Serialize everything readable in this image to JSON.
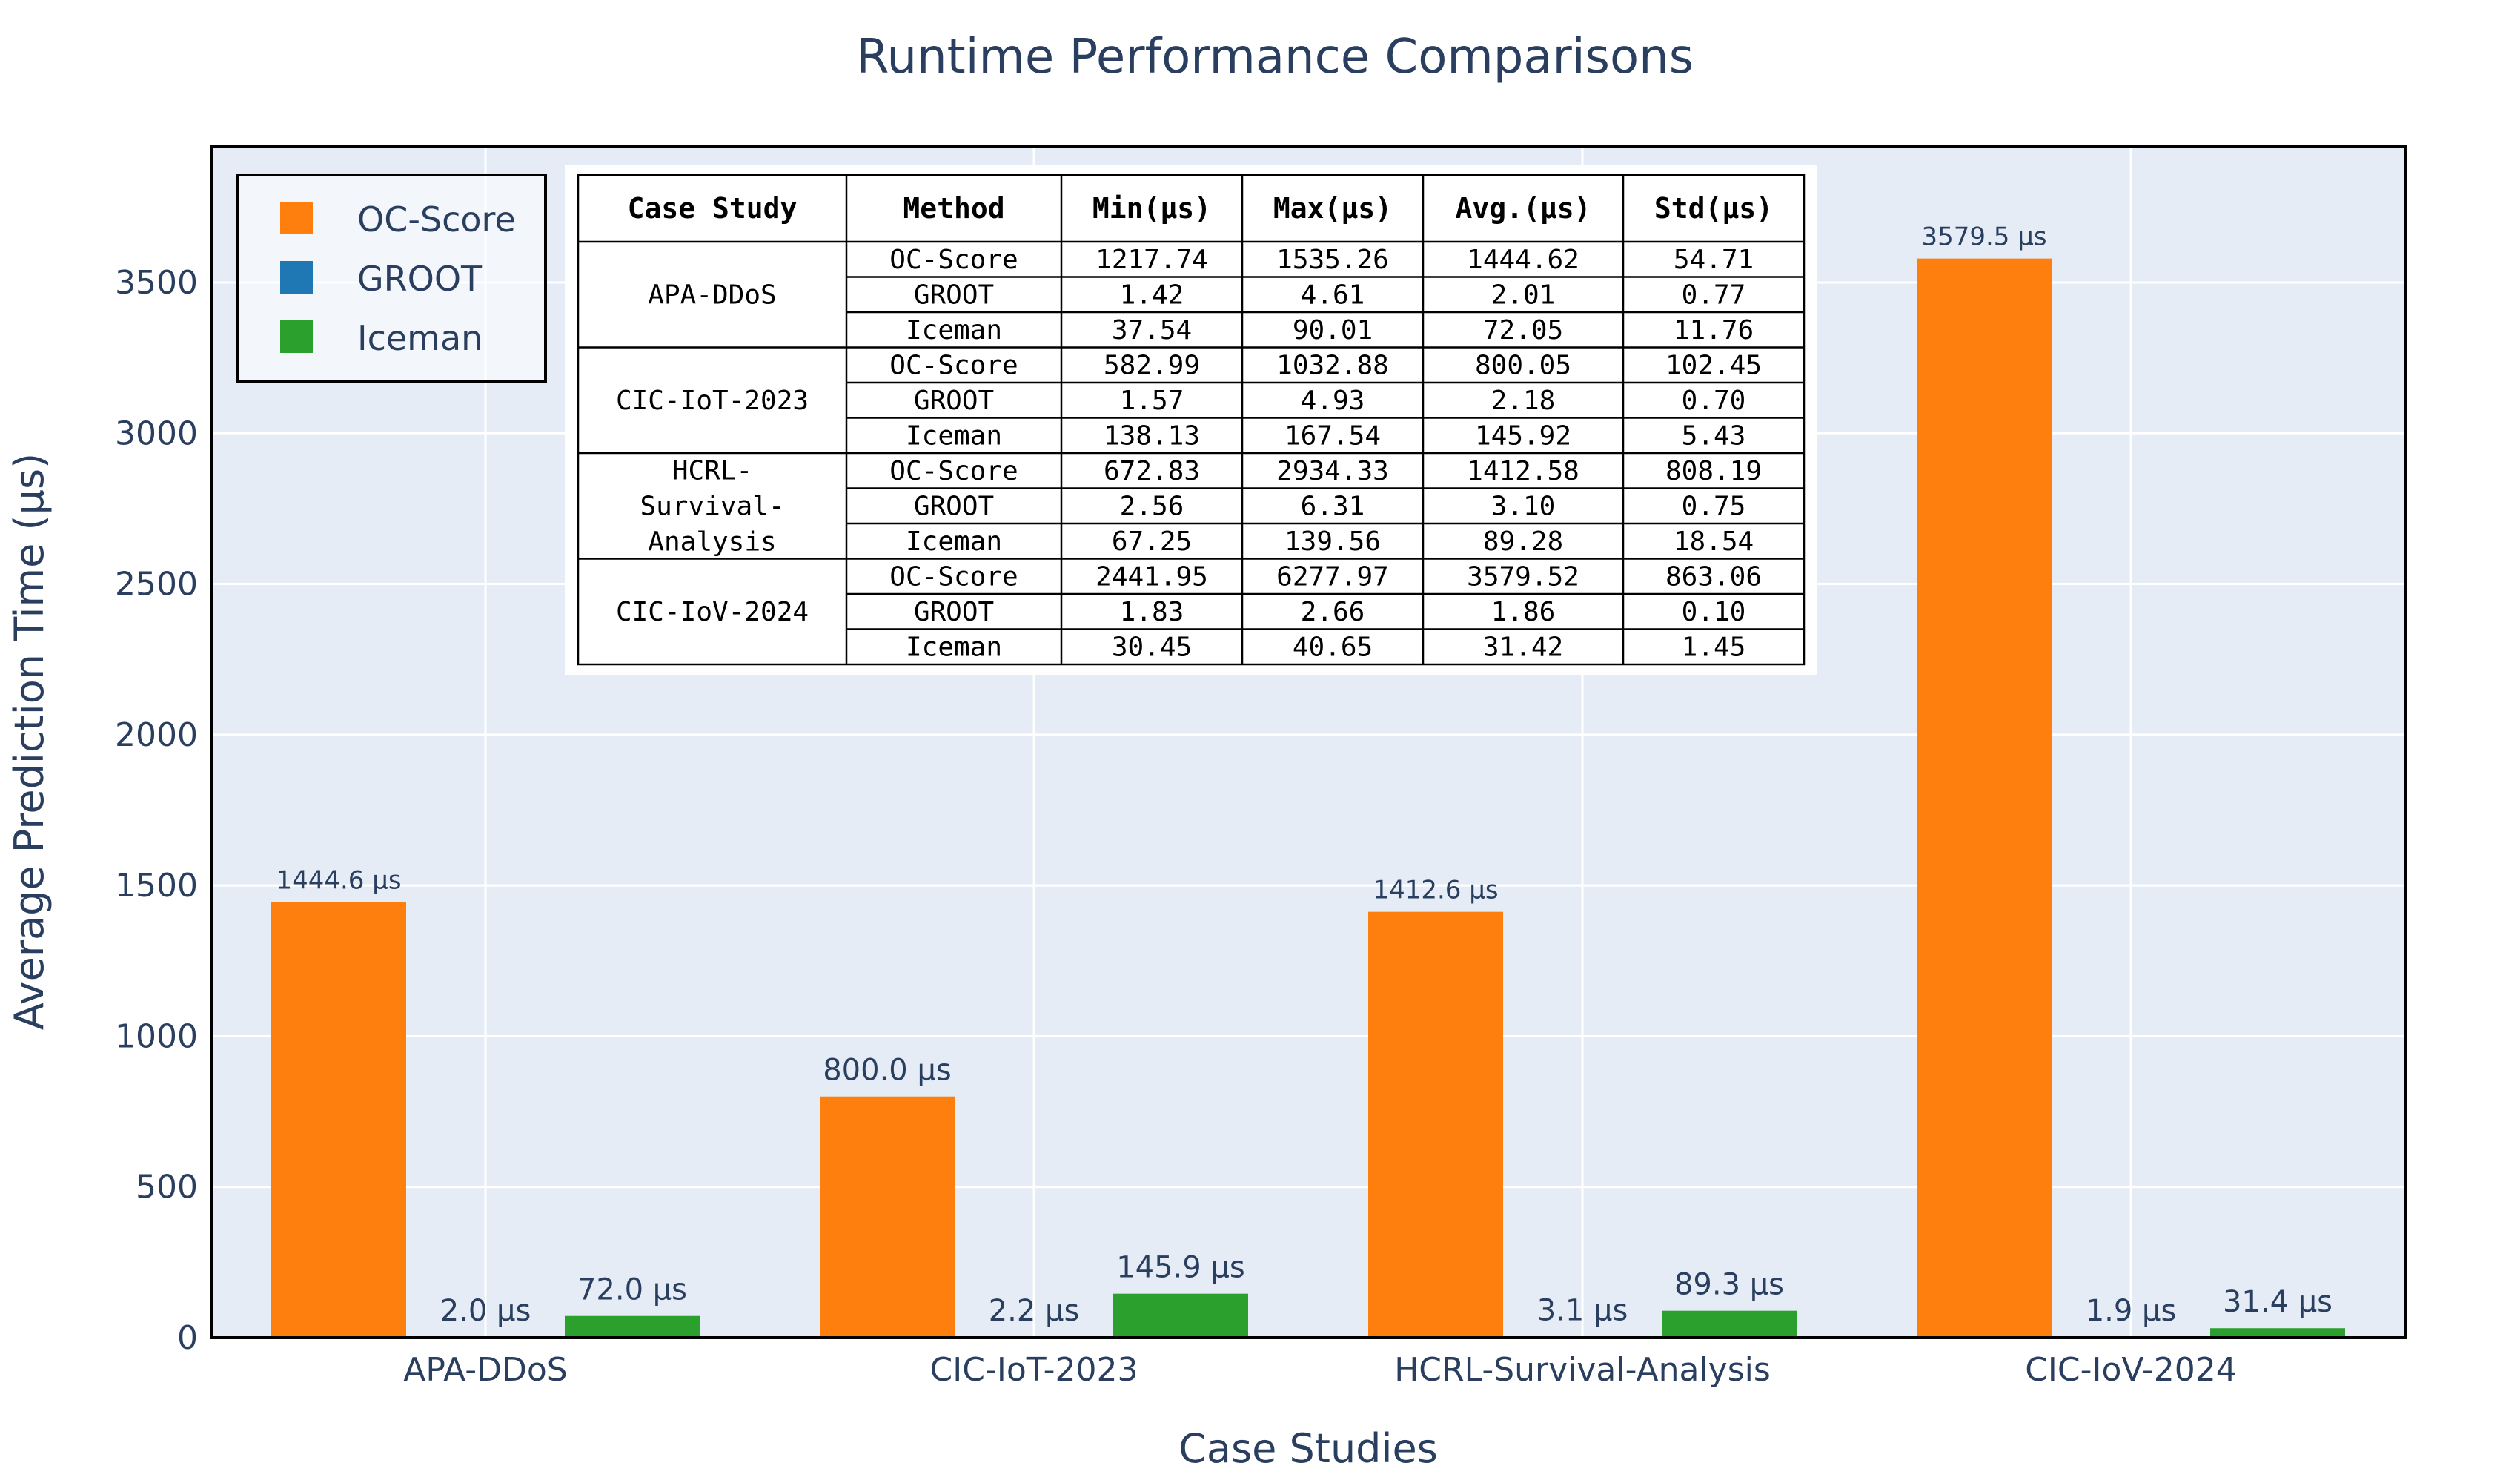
{
  "chart_data": {
    "type": "bar",
    "title": "Runtime Performance Comparisons",
    "xlabel": "Case Studies",
    "ylabel": "Average Prediction Time (µs)",
    "categories": [
      "APA-DDoS",
      "CIC-IoT-2023",
      "HCRL-Survival-Analysis",
      "CIC-IoV-2024"
    ],
    "ylim": [
      0,
      3950
    ],
    "yticks": [
      0,
      500,
      1000,
      1500,
      2000,
      2500,
      3000,
      3500
    ],
    "grid": true,
    "legend_position": "top-left",
    "series": [
      {
        "name": "OC-Score",
        "color": "#ff7f0e",
        "values": [
          1444.6,
          800.0,
          1412.6,
          3579.5
        ],
        "labels": [
          "1444.6 µs",
          "800.0 µs",
          "1412.6 µs",
          "3579.5 µs"
        ]
      },
      {
        "name": "GROOT",
        "color": "#1f77b4",
        "values": [
          2.0,
          2.2,
          3.1,
          1.9
        ],
        "labels": [
          "2.0 µs",
          "2.2 µs",
          "3.1 µs",
          "1.9 µs"
        ]
      },
      {
        "name": "Iceman",
        "color": "#2ca02c",
        "values": [
          72.0,
          145.9,
          89.3,
          31.4
        ],
        "labels": [
          "72.0 µs",
          "145.9 µs",
          "89.3 µs",
          "31.4 µs"
        ]
      }
    ],
    "table": {
      "headers": [
        "Case Study",
        "Method",
        "Min(µs)",
        "Max(µs)",
        "Avg.(µs)",
        "Std(µs)"
      ],
      "groups": [
        {
          "study": [
            "APA-DDoS"
          ],
          "rows": [
            [
              "OC-Score",
              "1217.74",
              "1535.26",
              "1444.62",
              "54.71"
            ],
            [
              "GROOT",
              "1.42",
              "4.61",
              "2.01",
              "0.77"
            ],
            [
              "Iceman",
              "37.54",
              "90.01",
              "72.05",
              "11.76"
            ]
          ]
        },
        {
          "study": [
            "CIC-IoT-2023"
          ],
          "rows": [
            [
              "OC-Score",
              "582.99",
              "1032.88",
              "800.05",
              "102.45"
            ],
            [
              "GROOT",
              "1.57",
              "4.93",
              "2.18",
              "0.70"
            ],
            [
              "Iceman",
              "138.13",
              "167.54",
              "145.92",
              "5.43"
            ]
          ]
        },
        {
          "study": [
            "HCRL-",
            "Survival-",
            "Analysis"
          ],
          "rows": [
            [
              "OC-Score",
              "672.83",
              "2934.33",
              "1412.58",
              "808.19"
            ],
            [
              "GROOT",
              "2.56",
              "6.31",
              "3.10",
              "0.75"
            ],
            [
              "Iceman",
              "67.25",
              "139.56",
              "89.28",
              "18.54"
            ]
          ]
        },
        {
          "study": [
            "CIC-IoV-2024"
          ],
          "rows": [
            [
              "OC-Score",
              "2441.95",
              "6277.97",
              "3579.52",
              "863.06"
            ],
            [
              "GROOT",
              "1.83",
              "2.66",
              "1.86",
              "0.10"
            ],
            [
              "Iceman",
              "30.45",
              "40.65",
              "31.42",
              "1.45"
            ]
          ]
        }
      ]
    }
  }
}
